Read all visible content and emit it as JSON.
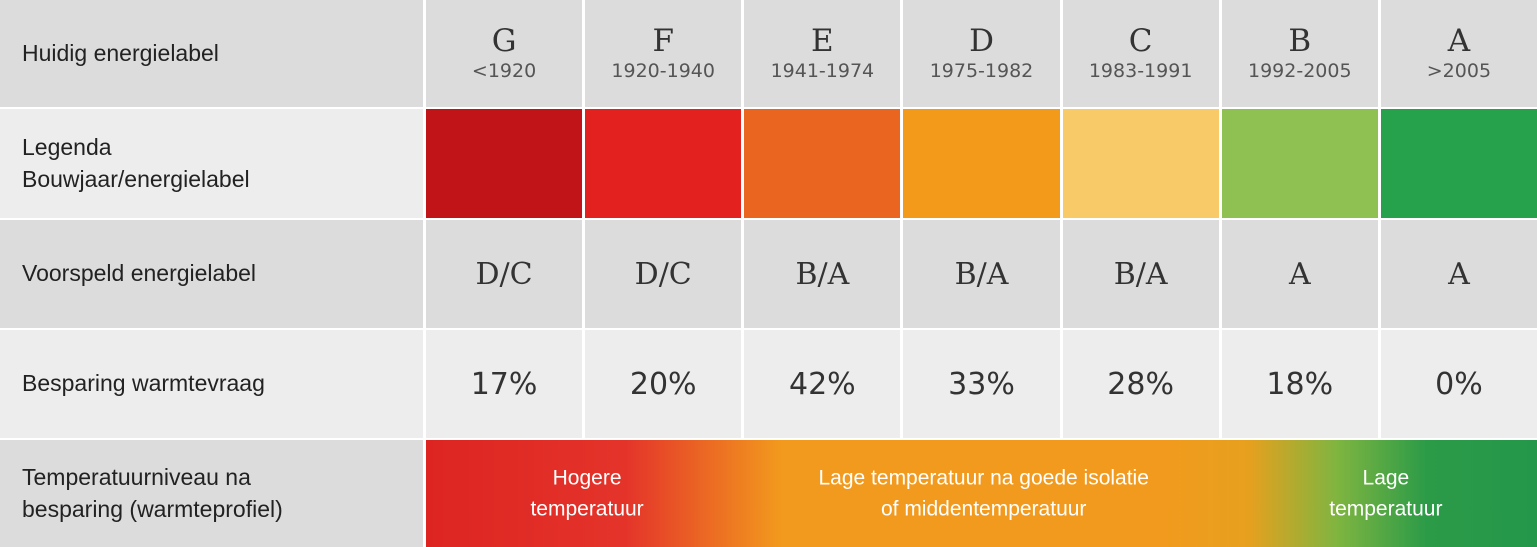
{
  "rows": {
    "current_label": "Huidig energielabel",
    "legend_line1": "Legenda",
    "legend_line2": "Bouwjaar/energielabel",
    "predicted": "Voorspeld energielabel",
    "savings": "Besparing warmtevraag",
    "temp_line1": "Temperatuurniveau na",
    "temp_line2": "besparing (warmteprofiel)"
  },
  "columns": [
    {
      "letter": "G",
      "years": "<1920",
      "color": "#c01418",
      "predicted": "D/C",
      "savings": "17%"
    },
    {
      "letter": "F",
      "years": "1920-1940",
      "color": "#e3211f",
      "predicted": "D/C",
      "savings": "20%"
    },
    {
      "letter": "E",
      "years": "1941-1974",
      "color": "#ea6520",
      "predicted": "B/A",
      "savings": "42%"
    },
    {
      "letter": "D",
      "years": "1975-1982",
      "color": "#f39a1b",
      "predicted": "B/A",
      "savings": "33%"
    },
    {
      "letter": "C",
      "years": "1983-1991",
      "color": "#f8ca68",
      "predicted": "B/A",
      "savings": "28%"
    },
    {
      "letter": "B",
      "years": "1992-2005",
      "color": "#8fc152",
      "predicted": "A",
      "savings": "18%"
    },
    {
      "letter": "A",
      "years": ">2005",
      "color": "#26a24c",
      "predicted": "A",
      "savings": "0%"
    }
  ],
  "temperature": {
    "high_line1": "Hogere",
    "high_line2": "temperatuur",
    "mid_line1": "Lage temperatuur na goede isolatie",
    "mid_line2": "of middentemperatuur",
    "low_line1": "Lage",
    "low_line2": "temperatuur"
  }
}
